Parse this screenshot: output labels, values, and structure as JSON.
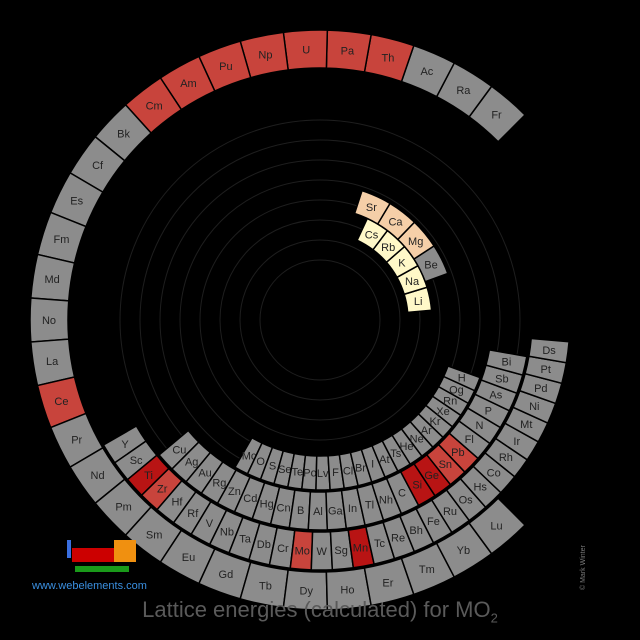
{
  "chart_data": {
    "type": "heatmap",
    "title": "Lattice energies (calculated) for MO",
    "title_subscript": "2",
    "legend_colors": {
      "no_data": "#8c8c8c",
      "oxide": "#c8443c",
      "oxide_dark": "#b81414",
      "peach": "#f5cfa8",
      "pale_yellow": "#fff8c8"
    },
    "rings": [
      {
        "ring": 1,
        "cells": [
          {
            "symbol": "Li",
            "color": "#fff8c8"
          },
          {
            "symbol": "Na",
            "color": "#fff8c8"
          },
          {
            "symbol": "K",
            "color": "#fff8c8"
          },
          {
            "symbol": "Rb",
            "color": "#fff8c8"
          },
          {
            "symbol": "Cs",
            "color": "#fff8c8"
          }
        ]
      },
      {
        "ring": 2,
        "cells": [
          {
            "symbol": "Be",
            "color": "#8c8c8c"
          },
          {
            "symbol": "Mg",
            "color": "#f5cfa8"
          },
          {
            "symbol": "Ca",
            "color": "#f5cfa8"
          },
          {
            "symbol": "Sr",
            "color": "#f5cfa8"
          }
        ]
      }
    ],
    "outer_cells": [
      "Fr",
      "Ra",
      "Ac",
      "Th",
      "Pa",
      "U",
      "Np",
      "Pu",
      "Am",
      "Cm",
      "Bk",
      "Cf",
      "Es",
      "Fm",
      "Md",
      "No",
      "La",
      "Ce",
      "Pr",
      "Nd",
      "Pm",
      "Sm",
      "Eu",
      "Gd",
      "Tb",
      "Dy",
      "Ho",
      "Er",
      "Tm",
      "Yb",
      "Lu",
      "Y",
      "Sc",
      "Ti",
      "Zr",
      "Hf",
      "Rf",
      "V",
      "Nb",
      "Ta",
      "Db",
      "Cr",
      "Mo",
      "W",
      "Sg",
      "Mn",
      "Tc",
      "Re",
      "Bh",
      "Fe",
      "Ru",
      "Os",
      "Hs",
      "Co",
      "Rh",
      "Ir",
      "Mt",
      "Ni",
      "Pd",
      "Pt",
      "Ds",
      "Cu",
      "Ag",
      "Au",
      "Rg",
      "Zn",
      "Cd",
      "Hg",
      "Cn",
      "B",
      "Al",
      "Ga",
      "In",
      "Tl",
      "Nh",
      "C",
      "Si",
      "Ge",
      "Sn",
      "Pb",
      "Fl",
      "N",
      "P",
      "As",
      "Sb",
      "Bi",
      "Mc",
      "O",
      "S",
      "Se",
      "Te",
      "Po",
      "Lv",
      "F",
      "Cl",
      "Br",
      "I",
      "At",
      "Ts",
      "He",
      "Ne",
      "Ar",
      "Kr",
      "Xe",
      "Rn",
      "Og",
      "H"
    ],
    "highlighted": {
      "Cm": "#c8443c",
      "Am": "#c8443c",
      "Pu": "#c8443c",
      "Np": "#c8443c",
      "U": "#c8443c",
      "Pa": "#c8443c",
      "Th": "#c8443c",
      "Ce": "#c8443c",
      "Zr": "#c8443c",
      "Ti": "#b81414",
      "Mo": "#c8443c",
      "Mn": "#b81414",
      "Si": "#b81414",
      "Ge": "#b81414",
      "Sn": "#c8443c",
      "Pb": "#c8443c"
    }
  },
  "footer": {
    "site": "www.webelements.com",
    "credit": "© Mark Winter"
  }
}
